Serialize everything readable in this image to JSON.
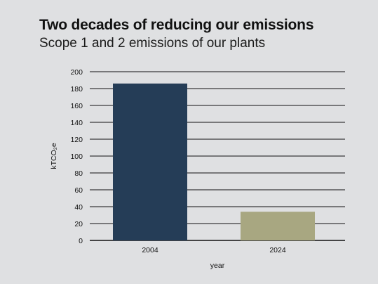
{
  "chart_data": {
    "type": "bar",
    "title": "Two decades of reducing our emissions",
    "subtitle": "Scope 1 and 2 emissions of our plants",
    "categories": [
      "2004",
      "2024"
    ],
    "values": [
      186,
      34
    ],
    "colors": [
      "#253d57",
      "#a8a781"
    ],
    "xlabel": "year",
    "ylabel": "kTCO₂e",
    "ylim": [
      0,
      200
    ],
    "yticks": [
      0,
      20,
      40,
      60,
      80,
      100,
      120,
      140,
      160,
      180,
      200
    ],
    "grid": true,
    "legend": "none"
  }
}
